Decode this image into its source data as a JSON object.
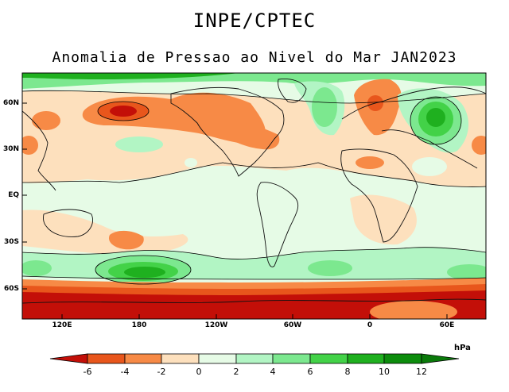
{
  "header": {
    "org": "INPE/CPTEC",
    "title": "Anomalia de Pressao ao Nivel do Mar JAN2023"
  },
  "map": {
    "lat_labels": [
      "60N",
      "30N",
      "EQ",
      "30S",
      "60S"
    ],
    "lon_labels": [
      "120E",
      "180",
      "120W",
      "60W",
      "0",
      "60E"
    ],
    "colors": {
      "neg6": "#c30f08",
      "neg4": "#e8561c",
      "neg2": "#f78a46",
      "neg0": "#fde0bd",
      "pos0": "#e6fbe6",
      "pos2": "#b2f5c4",
      "pos4": "#7ce88f",
      "pos6": "#43d248",
      "pos8": "#1fb01f",
      "pos10": "#0c8c0c",
      "ocean_bg": "#e6fbe6",
      "coast": "#111111"
    }
  },
  "colorbar": {
    "unit": "hPa",
    "labels": [
      "-6",
      "-4",
      "-2",
      "0",
      "2",
      "4",
      "6",
      "8",
      "10",
      "12"
    ],
    "colors": [
      "#c30f08",
      "#e8561c",
      "#f78a46",
      "#fde0bd",
      "#e6fbe6",
      "#b2f5c4",
      "#7ce88f",
      "#43d248",
      "#1fb01f",
      "#0c8c0c",
      "#0a7a0a"
    ]
  }
}
